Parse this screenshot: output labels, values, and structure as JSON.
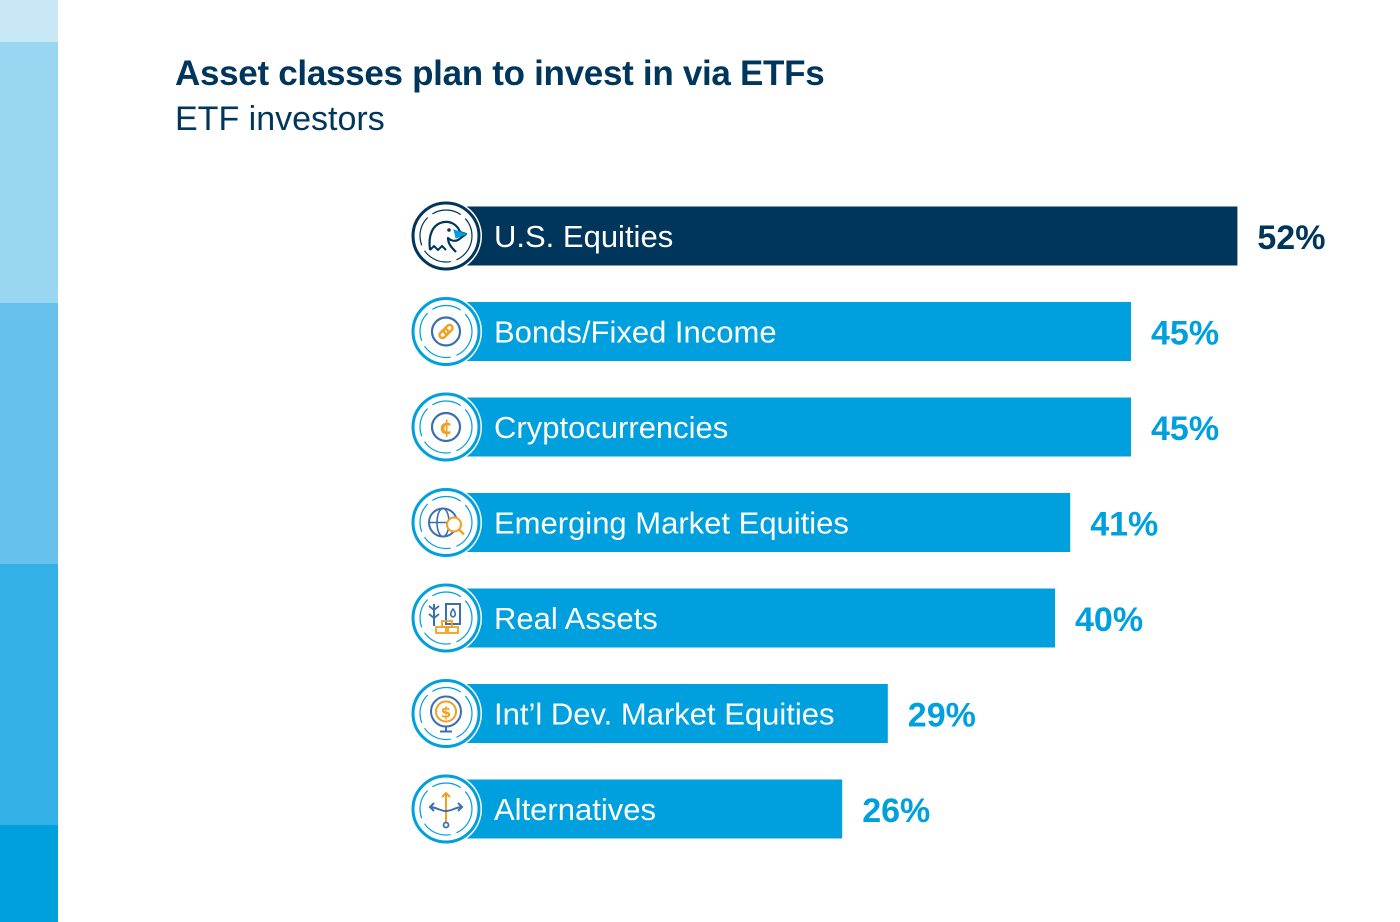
{
  "title": "Asset classes plan to invest in via ETFs",
  "subtitle": "ETF investors",
  "colors": {
    "highlight_bar": "#00365b",
    "bar": "#00a0df",
    "title": "#00365b",
    "side_band": [
      "#c8e8f8",
      "#99d6f2",
      "#66c2ec",
      "#33b0e5",
      "#00a0df"
    ]
  },
  "chart_data": {
    "type": "bar",
    "orientation": "horizontal",
    "title": "Asset classes plan to invest in via ETFs",
    "subtitle": "ETF investors",
    "categories": [
      "U.S. Equities",
      "Bonds/Fixed Income",
      "Cryptocurrencies",
      "Emerging Market Equities",
      "Real Assets",
      "Int’l Dev. Market Equities",
      "Alternatives"
    ],
    "values": [
      52,
      45,
      45,
      41,
      40,
      29,
      26
    ],
    "value_labels": [
      "52%",
      "45%",
      "45%",
      "41%",
      "40%",
      "29%",
      "26%"
    ],
    "icons": [
      "eagle-icon",
      "chain-link-icon",
      "crypto-coin-icon",
      "globe-search-icon",
      "real-assets-icon",
      "globe-dollar-icon",
      "diverging-arrows-icon"
    ],
    "highlight_index": 0,
    "grid": false,
    "legend": "none"
  }
}
